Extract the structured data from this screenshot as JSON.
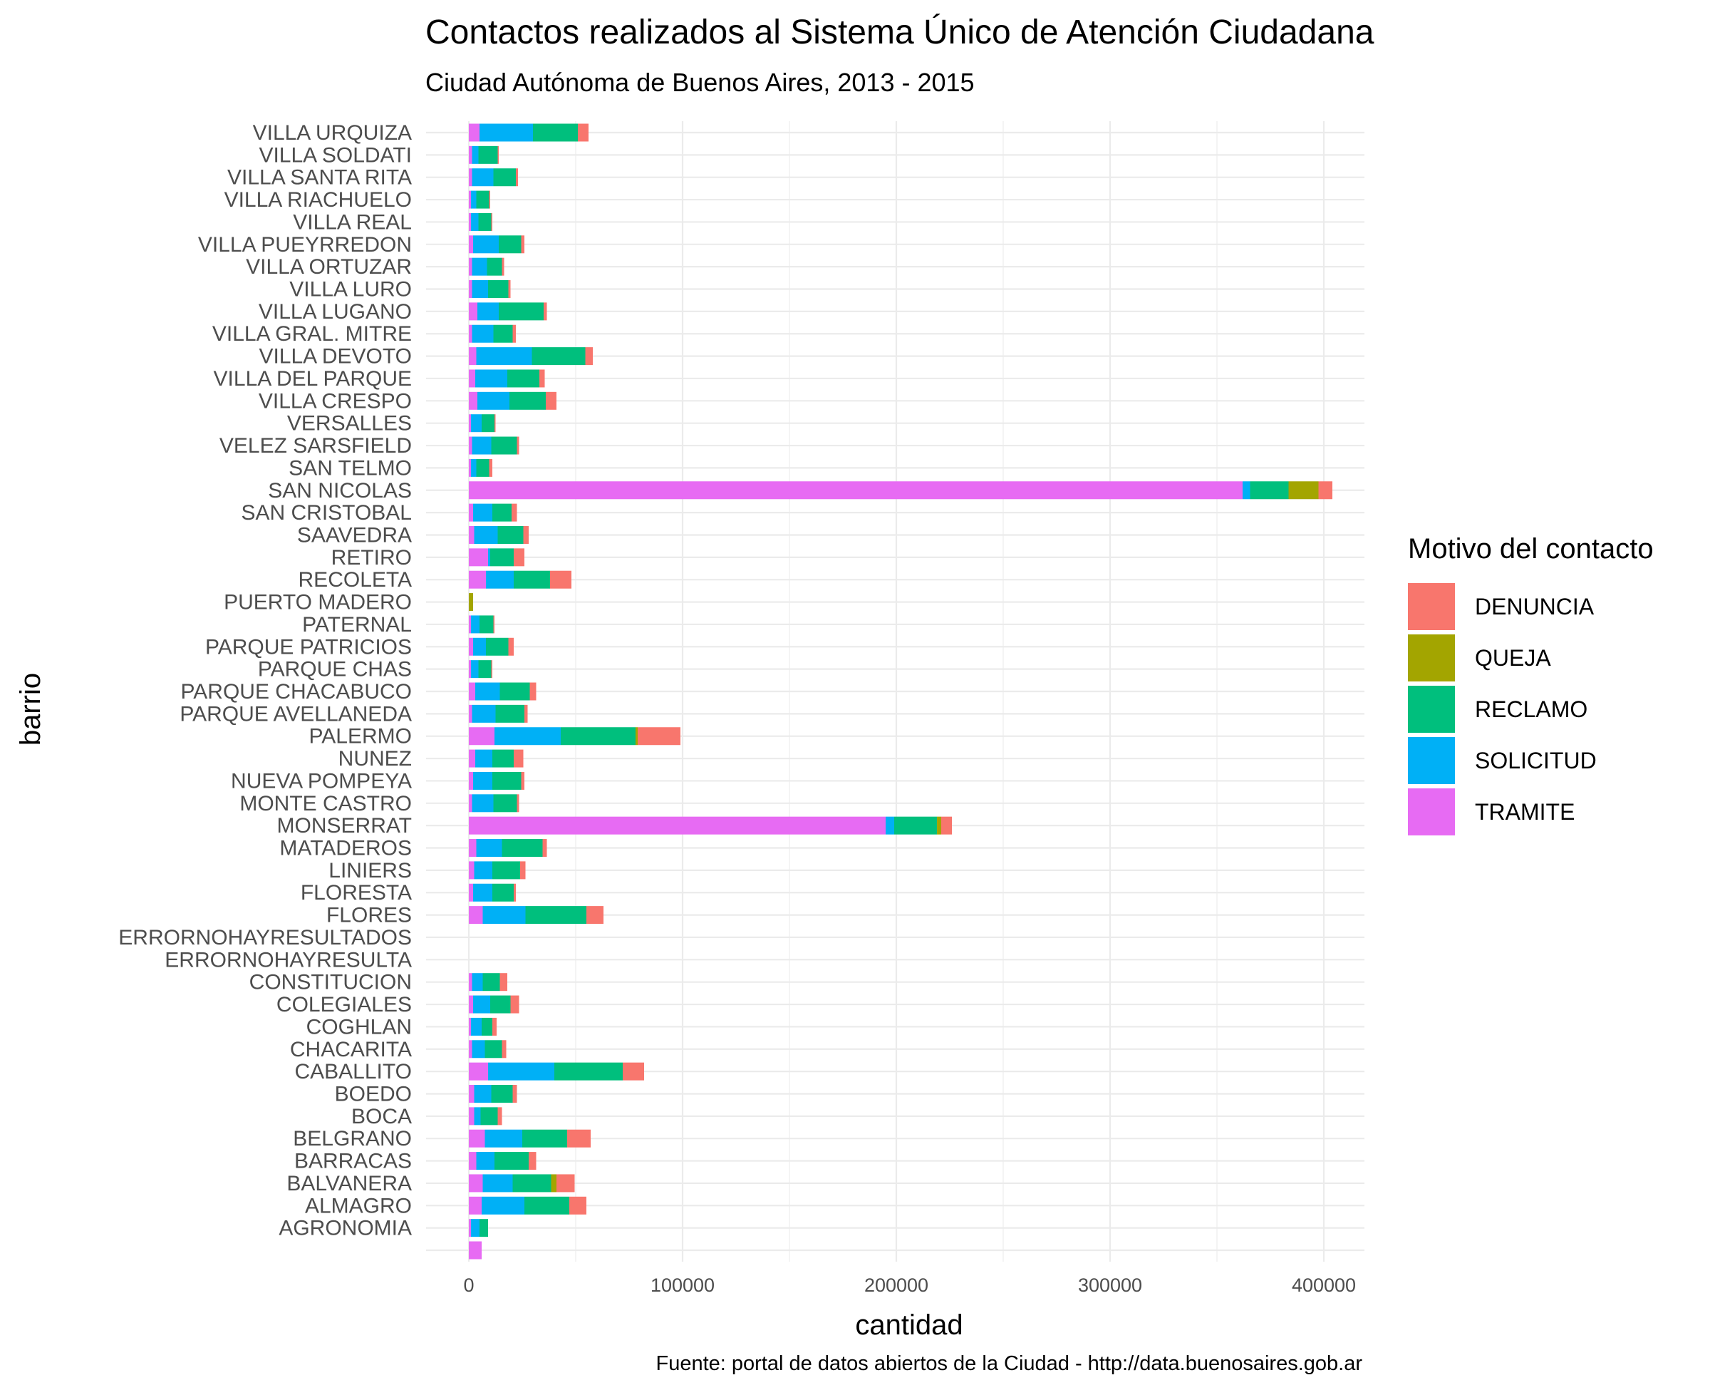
{
  "chart_data": {
    "type": "bar",
    "orientation": "horizontal",
    "stacked": true,
    "title": "Contactos realizados al Sistema Único de Atención Ciudadana",
    "subtitle": "Ciudad Autónoma de Buenos Aires, 2013 - 2015",
    "xlabel": "cantidad",
    "ylabel": "barrio",
    "caption": "Fuente: portal de datos abiertos de la Ciudad - http://data.buenosaires.gob.ar",
    "xlim": [
      -20000,
      420000
    ],
    "x_ticks": [
      0,
      100000,
      200000,
      300000,
      400000
    ],
    "grid": true,
    "legend": {
      "title": "Motivo del contacto",
      "position": "right",
      "items": [
        {
          "name": "DENUNCIA",
          "color": "#F8766D"
        },
        {
          "name": "QUEJA",
          "color": "#A3A500"
        },
        {
          "name": "RECLAMO",
          "color": "#00BF7D"
        },
        {
          "name": "SOLICITUD",
          "color": "#00B0F6"
        },
        {
          "name": "TRAMITE",
          "color": "#E76BF3"
        }
      ]
    },
    "categories": [
      "VILLA URQUIZA",
      "VILLA SOLDATI",
      "VILLA SANTA RITA",
      "VILLA RIACHUELO",
      "VILLA REAL",
      "VILLA PUEYRREDON",
      "VILLA ORTUZAR",
      "VILLA LURO",
      "VILLA LUGANO",
      "VILLA GRAL. MITRE",
      "VILLA DEVOTO",
      "VILLA DEL PARQUE",
      "VILLA CRESPO",
      "VERSALLES",
      "VELEZ SARSFIELD",
      "SAN TELMO",
      "SAN NICOLAS",
      "SAN CRISTOBAL",
      "SAAVEDRA",
      "RETIRO",
      "RECOLETA",
      "PUERTO MADERO",
      "PATERNAL",
      "PARQUE PATRICIOS",
      "PARQUE CHAS",
      "PARQUE CHACABUCO",
      "PARQUE AVELLANEDA",
      "PALERMO",
      "NUNEZ",
      "NUEVA POMPEYA",
      "MONTE CASTRO",
      "MONSERRAT",
      "MATADEROS",
      "LINIERS",
      "FLORESTA",
      "FLORES",
      "ERRORNOHAYRESULTADOS",
      "ERRORNOHAYRESULTA",
      "CONSTITUCION",
      "COLEGIALES",
      "COGHLAN",
      "CHACARITA",
      "CABALLITO",
      "BOEDO",
      "BOCA",
      "BELGRANO",
      "BARRACAS",
      "BALVANERA",
      "ALMAGRO",
      "AGRONOMIA",
      ""
    ],
    "series": [
      {
        "name": "TRAMITE",
        "values": [
          5000,
          1500,
          1500,
          1000,
          1000,
          2000,
          1500,
          1500,
          4000,
          1500,
          3500,
          3000,
          4000,
          1000,
          1500,
          1000,
          362000,
          2000,
          2500,
          9000,
          8000,
          0,
          1000,
          2000,
          1000,
          3000,
          1500,
          12000,
          3000,
          2000,
          1500,
          195000,
          3500,
          2500,
          2000,
          6500,
          0,
          0,
          1500,
          2000,
          1000,
          1500,
          9000,
          2500,
          2500,
          7500,
          3500,
          6500,
          6000,
          1000,
          6000
        ]
      },
      {
        "name": "SOLICITUD",
        "values": [
          25000,
          3000,
          10000,
          2500,
          3500,
          12000,
          7000,
          7500,
          10000,
          10000,
          26000,
          15000,
          15000,
          5000,
          9000,
          2500,
          3500,
          9000,
          11000,
          1000,
          13000,
          0,
          4000,
          6000,
          3500,
          11500,
          11000,
          31000,
          8000,
          9000,
          10000,
          4000,
          12000,
          8500,
          9000,
          20000,
          0,
          0,
          5000,
          8000,
          5000,
          6000,
          31000,
          8000,
          3000,
          17500,
          8500,
          14000,
          20000,
          4000,
          0
        ]
      },
      {
        "name": "RECLAMO",
        "values": [
          21000,
          9000,
          10500,
          6000,
          6000,
          10500,
          7000,
          9500,
          21000,
          9000,
          25000,
          15000,
          17000,
          6000,
          12000,
          6000,
          18000,
          9000,
          12000,
          11000,
          17000,
          0,
          6500,
          10500,
          6000,
          14000,
          13500,
          35000,
          10000,
          13500,
          11000,
          20000,
          19000,
          13000,
          10000,
          28500,
          0,
          0,
          8000,
          9500,
          5000,
          8000,
          32000,
          10000,
          8000,
          21000,
          16000,
          18000,
          21000,
          4000,
          0
        ]
      },
      {
        "name": "QUEJA",
        "values": [
          0,
          0,
          0,
          0,
          0,
          0,
          0,
          0,
          0,
          0,
          0,
          0,
          0,
          0,
          0,
          0,
          14000,
          0,
          0,
          0,
          0,
          2000,
          0,
          0,
          0,
          0,
          0,
          1000,
          0,
          0,
          0,
          2000,
          0,
          0,
          0,
          0,
          0,
          0,
          0,
          0,
          0,
          0,
          0,
          0,
          0,
          0,
          0,
          2500,
          0,
          0,
          0
        ]
      },
      {
        "name": "DENUNCIA",
        "values": [
          5000,
          500,
          1000,
          500,
          500,
          1500,
          1000,
          1000,
          1500,
          1500,
          3500,
          2500,
          5000,
          500,
          1000,
          1500,
          6500,
          2500,
          2500,
          5000,
          10000,
          0,
          500,
          2500,
          500,
          3000,
          1500,
          20000,
          4500,
          1500,
          1000,
          5000,
          2000,
          2500,
          1000,
          8000,
          0,
          0,
          3500,
          4000,
          2000,
          2000,
          10000,
          2000,
          2000,
          11000,
          3500,
          8500,
          8000,
          0,
          0
        ]
      }
    ]
  }
}
